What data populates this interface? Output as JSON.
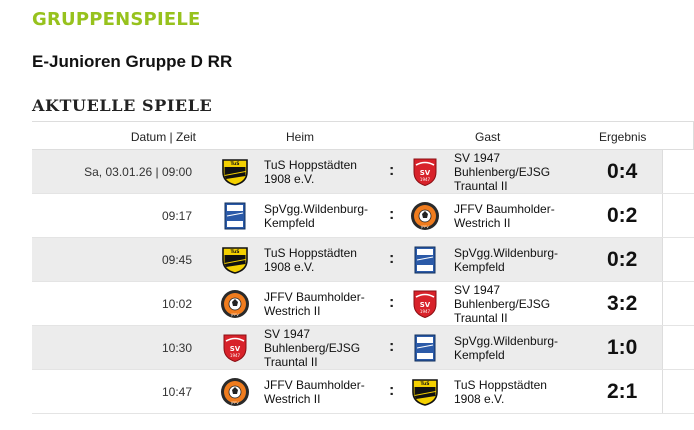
{
  "header": {
    "section_title": "GRUPPENSPIELE",
    "league_title": "E-Junioren Gruppe D RR",
    "games_title": "AKTUELLE SPIELE"
  },
  "table": {
    "columns": {
      "datum": "Datum | Zeit",
      "heim": "Heim",
      "gast": "Gast",
      "ergebnis": "Ergebnis"
    },
    "separator": ":",
    "rows": [
      {
        "time": "Sa, 03.01.26 | 09:00",
        "home_line1": "TuS Hoppstädten",
        "home_line2": "1908 e.V.",
        "home_logo": "hoppstaedten-logo",
        "away_line1": "SV 1947",
        "away_line2": "Buhlenberg/EJSG",
        "away_line3": "Trauntal II",
        "away_logo": "buhlenberg-logo",
        "result": "0:4"
      },
      {
        "time": "09:17",
        "home_line1": "SpVgg.Wildenburg-",
        "home_line2": "Kempfeld",
        "home_logo": "wildenburg-logo",
        "away_line1": "JFFV Baumholder-",
        "away_line2": "Westrich II",
        "away_line3": "",
        "away_logo": "baumholder-logo",
        "result": "0:2"
      },
      {
        "time": "09:45",
        "home_line1": "TuS Hoppstädten",
        "home_line2": "1908 e.V.",
        "home_logo": "hoppstaedten-logo",
        "away_line1": "SpVgg.Wildenburg-",
        "away_line2": "Kempfeld",
        "away_line3": "",
        "away_logo": "wildenburg-logo",
        "result": "0:2"
      },
      {
        "time": "10:02",
        "home_line1": "JFFV Baumholder-",
        "home_line2": "Westrich II",
        "home_logo": "baumholder-logo",
        "away_line1": "SV 1947",
        "away_line2": "Buhlenberg/EJSG",
        "away_line3": "Trauntal II",
        "away_logo": "buhlenberg-logo",
        "result": "3:2"
      },
      {
        "time": "10:30",
        "home_line1": "SV 1947",
        "home_line2": "Buhlenberg/EJSG",
        "home_line3": "Trauntal II",
        "home_logo": "buhlenberg-logo",
        "away_line1": "SpVgg.Wildenburg-",
        "away_line2": "Kempfeld",
        "away_line3": "",
        "away_logo": "wildenburg-logo",
        "result": "1:0"
      },
      {
        "time": "10:47",
        "home_line1": "JFFV Baumholder-",
        "home_line2": "Westrich II",
        "home_logo": "baumholder-logo",
        "away_line1": "TuS Hoppstädten",
        "away_line2": "1908 e.V.",
        "away_line3": "",
        "away_logo": "hoppstaedten-logo",
        "result": "2:1"
      }
    ]
  },
  "colors": {
    "accent_green": "#97c21d",
    "row_alt": "#ececec"
  }
}
